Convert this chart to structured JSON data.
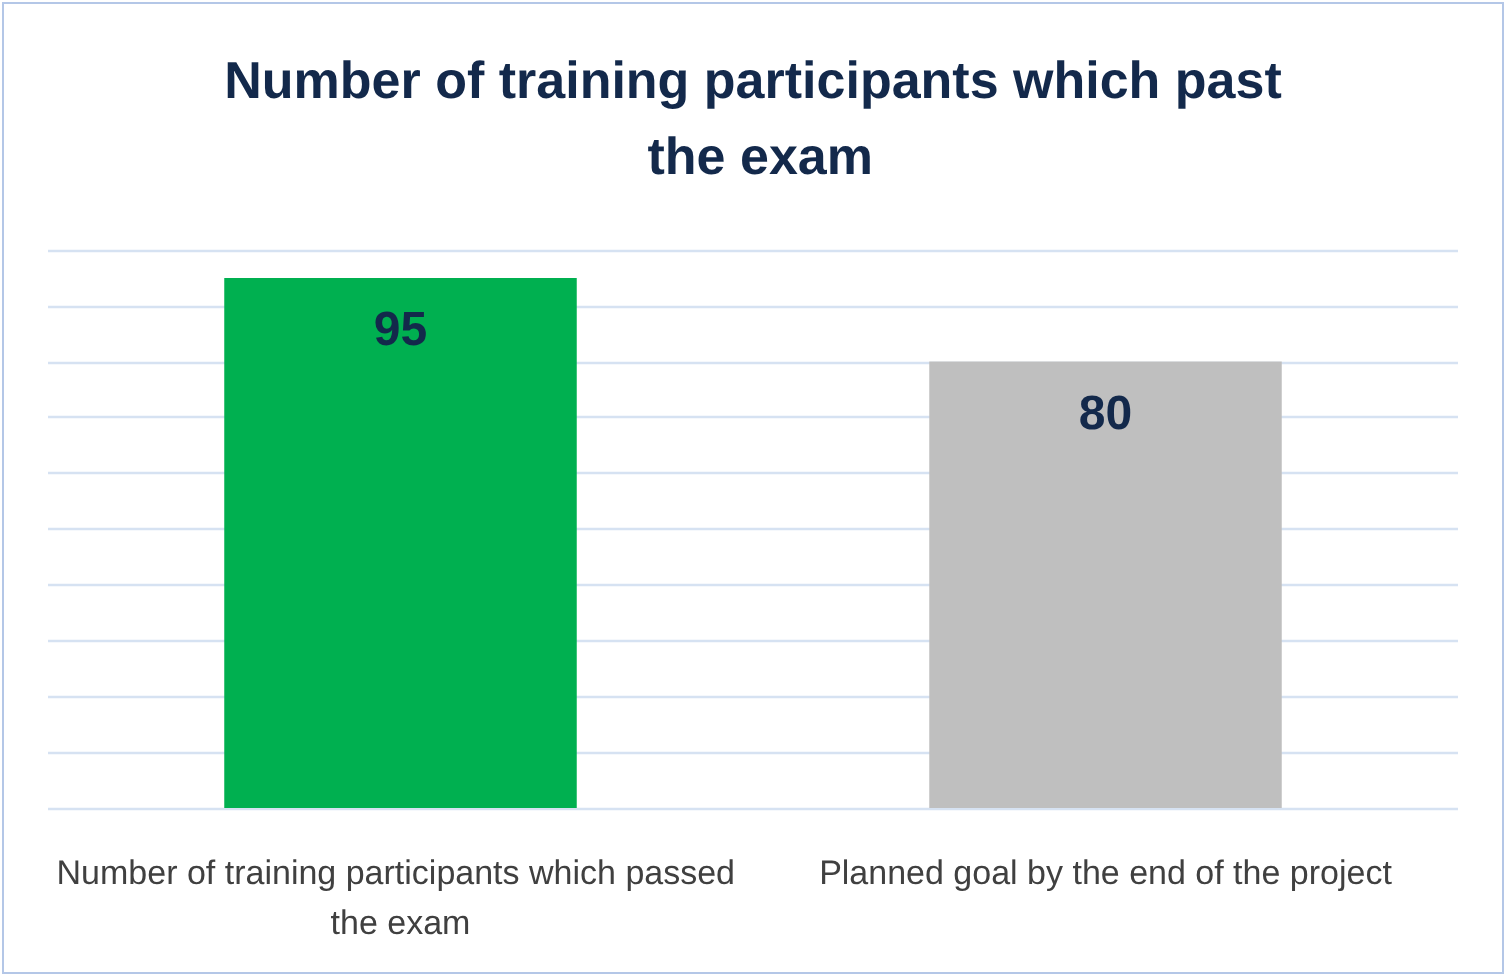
{
  "chart_data": {
    "type": "bar",
    "title": "Number of training participants which past the exam",
    "categories": [
      "Number of training participants which passed the exam",
      "Planned goal by the end of the project"
    ],
    "values": [
      95,
      80
    ],
    "colors": [
      "#00b050",
      "#bfbfbf"
    ],
    "data_labels": true,
    "ylim": [
      0,
      100
    ],
    "yticks": [
      {
        "value": 0,
        "label": null
      },
      {
        "value": 10,
        "label": null
      },
      {
        "value": 20,
        "label": null
      },
      {
        "value": 30,
        "label": null
      },
      {
        "value": 40,
        "label": null
      },
      {
        "value": 50,
        "label": null
      },
      {
        "value": 60,
        "label": null
      },
      {
        "value": 70,
        "label": null
      },
      {
        "value": 80,
        "label": null
      },
      {
        "value": 90,
        "label": null
      },
      {
        "value": 100,
        "label": null
      }
    ],
    "grid": "y",
    "tick_labels": "x"
  }
}
